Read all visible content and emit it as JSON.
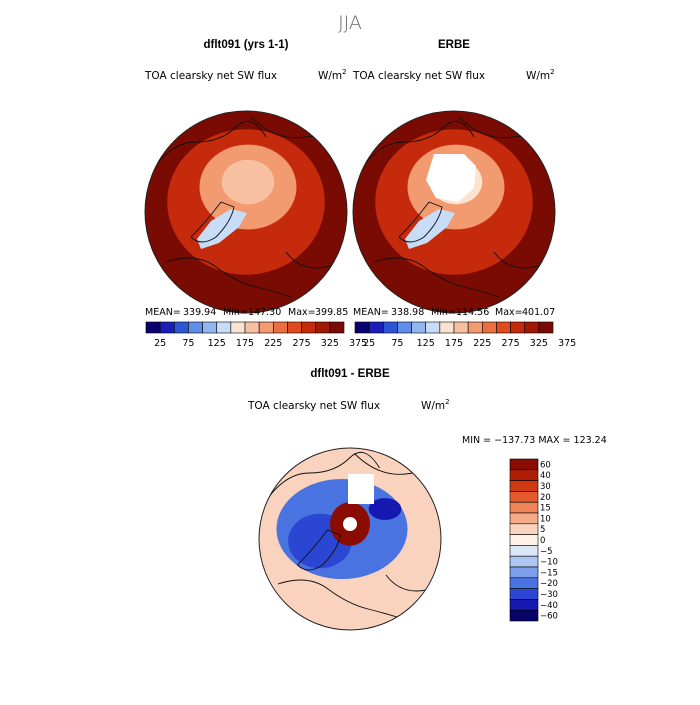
{
  "figure": {
    "title": "JJA"
  },
  "palette": {
    "sequential": [
      "#08036e",
      "#1a1fb8",
      "#2e55d6",
      "#5e8ee8",
      "#92b7f0",
      "#c7dcf6",
      "#fbe3d2",
      "#f7c1a1",
      "#f29a70",
      "#ec6f43",
      "#e14a1f",
      "#c52a0c",
      "#a01806",
      "#7a0b03"
    ],
    "diverging": [
      "#07046a",
      "#1519b0",
      "#2a46d2",
      "#4a73e2",
      "#7d9eea",
      "#aec6f2",
      "#dbe6f8",
      "#fdf1e8",
      "#f9d3bd",
      "#f4ac88",
      "#ee8458",
      "#e45a2c",
      "#cf3a10",
      "#b01e06",
      "#8a0c02"
    ],
    "land_outline": "#111111",
    "missing": "#ffffff"
  },
  "chart_data": [
    {
      "type": "heatmap",
      "projection": "north-polar-stereographic",
      "panel_title": "dflt091 (yrs 1-1)",
      "variable": "TOA clearsky net SW flux",
      "units": "W/m",
      "units_exp": "2",
      "stats": {
        "mean_label": "MEAN=",
        "mean": "339.94",
        "min_label": "Min=",
        "min": "147.30",
        "max_label": "Max=",
        "max": "399.85"
      },
      "colorbar_ticks": [
        "25",
        "75",
        "125",
        "175",
        "225",
        "275",
        "325",
        "375"
      ],
      "field": {
        "outer": 372,
        "mid": 330,
        "inner": 250,
        "pole": 205,
        "greenland": 160
      }
    },
    {
      "type": "heatmap",
      "projection": "north-polar-stereographic",
      "panel_title": "ERBE",
      "variable": "TOA clearsky net SW flux",
      "units": "W/m",
      "units_exp": "2",
      "stats": {
        "mean_label": "MEAN=",
        "mean": "338.98",
        "min_label": "Min=",
        "min": "114.56",
        "max_label": "Max=",
        "max": "401.07"
      },
      "colorbar_ticks": [
        "25",
        "75",
        "125",
        "175",
        "225",
        "275",
        "325",
        "375"
      ],
      "field": {
        "outer": 372,
        "mid": 330,
        "inner": 250,
        "pole": 175,
        "greenland": 150,
        "missing_pole": true
      }
    },
    {
      "type": "heatmap",
      "projection": "north-polar-stereographic",
      "panel_title": "dflt091 - ERBE",
      "variable": "TOA clearsky net SW flux",
      "units": "W/m",
      "units_exp": "2",
      "stats_line": "MIN = −137.73 MAX = 123.24",
      "colorbar_levels": [
        "60",
        "40",
        "30",
        "20",
        "15",
        "10",
        "5",
        "0",
        "−5",
        "−10",
        "−15",
        "−20",
        "−30",
        "−40",
        "−60"
      ],
      "field": {
        "background": 3,
        "ring": -25,
        "pole": 70,
        "missing_pole": true
      }
    }
  ]
}
